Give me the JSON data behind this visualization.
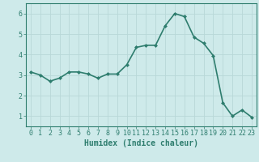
{
  "x": [
    0,
    1,
    2,
    3,
    4,
    5,
    6,
    7,
    8,
    9,
    10,
    11,
    12,
    13,
    14,
    15,
    16,
    17,
    18,
    19,
    20,
    21,
    22,
    23
  ],
  "y": [
    3.15,
    3.0,
    2.7,
    2.85,
    3.15,
    3.15,
    3.05,
    2.85,
    3.05,
    3.05,
    3.5,
    4.35,
    4.45,
    4.45,
    5.4,
    6.0,
    5.85,
    4.85,
    4.55,
    3.95,
    1.65,
    1.0,
    1.3,
    0.95
  ],
  "line_color": "#2e7d6e",
  "marker": "D",
  "marker_size": 2,
  "bg_color": "#ceeaea",
  "grid_color": "#b8d8d8",
  "xlabel": "Humidex (Indice chaleur)",
  "xlim": [
    -0.5,
    23.5
  ],
  "ylim": [
    0.5,
    6.5
  ],
  "yticks": [
    1,
    2,
    3,
    4,
    5,
    6
  ],
  "xticks": [
    0,
    1,
    2,
    3,
    4,
    5,
    6,
    7,
    8,
    9,
    10,
    11,
    12,
    13,
    14,
    15,
    16,
    17,
    18,
    19,
    20,
    21,
    22,
    23
  ],
  "xlabel_fontsize": 7,
  "tick_fontsize": 6,
  "line_width": 1.2
}
